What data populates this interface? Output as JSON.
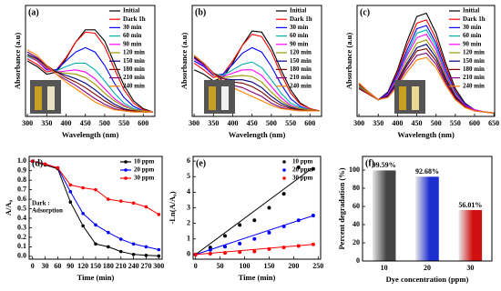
{
  "chart_data": [
    {
      "type": "line",
      "title": "(a)",
      "x_label": "Wavelength (nm)",
      "y_label": "Absorbance (a.u)",
      "x": [
        300,
        325,
        350,
        375,
        400,
        425,
        450,
        475,
        500,
        525,
        550,
        575,
        600,
        625
      ],
      "xlim": [
        295,
        630
      ],
      "xticks": [
        300,
        350,
        400,
        450,
        500,
        550,
        600
      ],
      "ylim": [
        0,
        1
      ],
      "legend": "upper right",
      "series": [
        {
          "name": "Initial",
          "color": "#000000",
          "values": [
            0.5,
            0.45,
            0.38,
            0.4,
            0.52,
            0.67,
            0.78,
            0.78,
            0.68,
            0.48,
            0.28,
            0.14,
            0.07,
            0.04
          ]
        },
        {
          "name": "Dark 1h",
          "color": "#ff0000",
          "values": [
            0.52,
            0.47,
            0.4,
            0.42,
            0.53,
            0.67,
            0.76,
            0.75,
            0.63,
            0.43,
            0.24,
            0.12,
            0.06,
            0.04
          ]
        },
        {
          "name": "30 min",
          "color": "#0000ff",
          "values": [
            0.55,
            0.5,
            0.42,
            0.42,
            0.5,
            0.58,
            0.62,
            0.58,
            0.46,
            0.3,
            0.17,
            0.09,
            0.05,
            0.04
          ]
        },
        {
          "name": "60 min",
          "color": "#00b0b0",
          "values": [
            0.54,
            0.5,
            0.43,
            0.41,
            0.45,
            0.48,
            0.48,
            0.42,
            0.32,
            0.21,
            0.12,
            0.07,
            0.05,
            0.04
          ]
        },
        {
          "name": "90 min",
          "color": "#ff00ff",
          "values": [
            0.55,
            0.5,
            0.43,
            0.4,
            0.41,
            0.42,
            0.4,
            0.34,
            0.25,
            0.16,
            0.1,
            0.06,
            0.05,
            0.04
          ]
        },
        {
          "name": "120 min",
          "color": "#999900",
          "values": [
            0.55,
            0.51,
            0.44,
            0.4,
            0.39,
            0.38,
            0.35,
            0.29,
            0.21,
            0.14,
            0.09,
            0.06,
            0.05,
            0.04
          ]
        },
        {
          "name": "150 min",
          "color": "#000080",
          "values": [
            0.56,
            0.52,
            0.45,
            0.4,
            0.37,
            0.34,
            0.3,
            0.24,
            0.17,
            0.11,
            0.07,
            0.05,
            0.04,
            0.04
          ]
        },
        {
          "name": "180 min",
          "color": "#800000",
          "values": [
            0.58,
            0.53,
            0.46,
            0.4,
            0.35,
            0.31,
            0.26,
            0.2,
            0.14,
            0.09,
            0.06,
            0.05,
            0.04,
            0.04
          ]
        },
        {
          "name": "210 min",
          "color": "#800080",
          "values": [
            0.58,
            0.53,
            0.45,
            0.38,
            0.33,
            0.28,
            0.22,
            0.16,
            0.11,
            0.07,
            0.05,
            0.04,
            0.04,
            0.04
          ]
        },
        {
          "name": "240 min",
          "color": "#ff8000",
          "values": [
            0.6,
            0.55,
            0.46,
            0.38,
            0.31,
            0.25,
            0.19,
            0.13,
            0.09,
            0.06,
            0.05,
            0.04,
            0.04,
            0.04
          ]
        }
      ]
    },
    {
      "type": "line",
      "title": "(b)",
      "x_label": "Wavelength (nm)",
      "y_label": "Absorbance (a.u)",
      "x": [
        300,
        325,
        350,
        375,
        400,
        425,
        450,
        475,
        500,
        525,
        550,
        575,
        600,
        625
      ],
      "xlim": [
        295,
        630
      ],
      "xticks": [
        300,
        350,
        400,
        450,
        500,
        550,
        600
      ],
      "ylim": [
        0,
        1
      ],
      "legend": "upper right",
      "series": [
        {
          "name": "Initial",
          "color": "#000000",
          "values": [
            0.42,
            0.38,
            0.32,
            0.35,
            0.48,
            0.64,
            0.77,
            0.76,
            0.62,
            0.42,
            0.24,
            0.12,
            0.07,
            0.05
          ]
        },
        {
          "name": "Dark 1h",
          "color": "#ff0000",
          "values": [
            0.48,
            0.42,
            0.35,
            0.38,
            0.5,
            0.64,
            0.74,
            0.72,
            0.58,
            0.38,
            0.21,
            0.11,
            0.07,
            0.05
          ]
        },
        {
          "name": "30 min",
          "color": "#0000ff",
          "values": [
            0.5,
            0.45,
            0.37,
            0.38,
            0.47,
            0.57,
            0.62,
            0.58,
            0.45,
            0.29,
            0.16,
            0.09,
            0.06,
            0.05
          ]
        },
        {
          "name": "60 min",
          "color": "#00b0b0",
          "values": [
            0.52,
            0.46,
            0.38,
            0.37,
            0.42,
            0.47,
            0.49,
            0.44,
            0.33,
            0.21,
            0.12,
            0.08,
            0.06,
            0.05
          ]
        },
        {
          "name": "90 min",
          "color": "#ff00ff",
          "values": [
            0.52,
            0.46,
            0.38,
            0.36,
            0.39,
            0.42,
            0.42,
            0.37,
            0.27,
            0.17,
            0.1,
            0.07,
            0.06,
            0.05
          ]
        },
        {
          "name": "120 min",
          "color": "#999900",
          "values": [
            0.53,
            0.47,
            0.39,
            0.35,
            0.36,
            0.37,
            0.36,
            0.31,
            0.22,
            0.14,
            0.09,
            0.07,
            0.06,
            0.05
          ]
        },
        {
          "name": "150 min",
          "color": "#000080",
          "values": [
            0.53,
            0.47,
            0.39,
            0.34,
            0.33,
            0.33,
            0.31,
            0.26,
            0.18,
            0.12,
            0.08,
            0.06,
            0.05,
            0.05
          ]
        },
        {
          "name": "180 min",
          "color": "#800000",
          "values": [
            0.54,
            0.48,
            0.39,
            0.34,
            0.31,
            0.3,
            0.27,
            0.22,
            0.15,
            0.1,
            0.07,
            0.06,
            0.05,
            0.05
          ]
        },
        {
          "name": "210 min",
          "color": "#800080",
          "values": [
            0.55,
            0.48,
            0.39,
            0.32,
            0.28,
            0.26,
            0.22,
            0.18,
            0.12,
            0.08,
            0.06,
            0.05,
            0.05,
            0.05
          ]
        },
        {
          "name": "240 min",
          "color": "#ff8000",
          "values": [
            0.55,
            0.48,
            0.38,
            0.31,
            0.26,
            0.22,
            0.18,
            0.14,
            0.1,
            0.07,
            0.06,
            0.05,
            0.05,
            0.05
          ]
        }
      ]
    },
    {
      "type": "line",
      "title": "(c)",
      "x_label": "Wavelength (nm)",
      "y_label": "Absorbance (a.u)",
      "x": [
        300,
        325,
        350,
        375,
        400,
        425,
        450,
        475,
        500,
        525,
        550,
        575,
        600,
        625,
        650
      ],
      "xlim": [
        295,
        652
      ],
      "xticks": [
        300,
        350,
        400,
        450,
        500,
        550,
        600,
        650
      ],
      "ylim": [
        0,
        1
      ],
      "legend": "upper right",
      "series": [
        {
          "name": "Initial",
          "color": "#000000",
          "values": [
            0.25,
            0.2,
            0.15,
            0.22,
            0.42,
            0.68,
            0.9,
            0.93,
            0.75,
            0.48,
            0.25,
            0.12,
            0.06,
            0.04,
            0.03
          ]
        },
        {
          "name": "Dark 1h",
          "color": "#ff0000",
          "values": [
            0.26,
            0.2,
            0.15,
            0.21,
            0.4,
            0.64,
            0.84,
            0.87,
            0.7,
            0.45,
            0.23,
            0.11,
            0.06,
            0.04,
            0.03
          ]
        },
        {
          "name": "30 min",
          "color": "#0000ff",
          "values": [
            0.27,
            0.21,
            0.15,
            0.21,
            0.38,
            0.6,
            0.79,
            0.82,
            0.66,
            0.42,
            0.22,
            0.11,
            0.06,
            0.04,
            0.03
          ]
        },
        {
          "name": "60 min",
          "color": "#00b0b0",
          "values": [
            0.27,
            0.21,
            0.15,
            0.2,
            0.36,
            0.57,
            0.75,
            0.78,
            0.63,
            0.4,
            0.21,
            0.1,
            0.06,
            0.04,
            0.03
          ]
        },
        {
          "name": "90 min",
          "color": "#ff00ff",
          "values": [
            0.28,
            0.21,
            0.15,
            0.2,
            0.35,
            0.55,
            0.71,
            0.74,
            0.6,
            0.38,
            0.2,
            0.1,
            0.06,
            0.04,
            0.03
          ]
        },
        {
          "name": "120 min",
          "color": "#999900",
          "values": [
            0.28,
            0.21,
            0.15,
            0.19,
            0.33,
            0.51,
            0.66,
            0.69,
            0.56,
            0.36,
            0.19,
            0.09,
            0.05,
            0.04,
            0.03
          ]
        },
        {
          "name": "150 min",
          "color": "#000080",
          "values": [
            0.29,
            0.22,
            0.15,
            0.19,
            0.32,
            0.48,
            0.62,
            0.65,
            0.53,
            0.34,
            0.18,
            0.09,
            0.05,
            0.04,
            0.03
          ]
        },
        {
          "name": "180 min",
          "color": "#800000",
          "values": [
            0.29,
            0.22,
            0.15,
            0.18,
            0.3,
            0.46,
            0.59,
            0.61,
            0.5,
            0.32,
            0.17,
            0.09,
            0.05,
            0.04,
            0.03
          ]
        },
        {
          "name": "210 min",
          "color": "#800080",
          "values": [
            0.3,
            0.22,
            0.15,
            0.18,
            0.29,
            0.43,
            0.55,
            0.57,
            0.47,
            0.3,
            0.16,
            0.08,
            0.05,
            0.04,
            0.03
          ]
        },
        {
          "name": "240 min",
          "color": "#ff8000",
          "values": [
            0.3,
            0.22,
            0.15,
            0.17,
            0.27,
            0.4,
            0.51,
            0.53,
            0.44,
            0.28,
            0.15,
            0.08,
            0.05,
            0.04,
            0.03
          ]
        }
      ]
    },
    {
      "type": "line",
      "markers": true,
      "title": "(d)",
      "x_label": "Time (min)",
      "y_label": "A/A₀",
      "annotation": [
        "Dark :",
        "Adsorption"
      ],
      "x": [
        0,
        30,
        60,
        90,
        120,
        150,
        180,
        210,
        240,
        270,
        300
      ],
      "xlim": [
        -8,
        308
      ],
      "xticks": [
        0,
        30,
        60,
        90,
        120,
        150,
        180,
        210,
        240,
        270,
        300
      ],
      "ylim": [
        -0.03,
        1.05
      ],
      "yticks": [
        {
          "value": 0,
          "label": "0.0"
        },
        0.1,
        0.2,
        0.3,
        0.4,
        0.5,
        0.6,
        0.7,
        0.8,
        0.9,
        {
          "value": 1,
          "label": "1.0"
        }
      ],
      "legend": "upper right",
      "series": [
        {
          "name": "10 ppm",
          "color": "#000000",
          "values": [
            1.0,
            0.96,
            0.92,
            0.57,
            0.32,
            0.13,
            0.1,
            0.05,
            0.02,
            0.01,
            0.004
          ]
        },
        {
          "name": "20 ppm",
          "color": "#0000ff",
          "values": [
            1.0,
            0.97,
            0.93,
            0.68,
            0.45,
            0.33,
            0.25,
            0.18,
            0.13,
            0.1,
            0.07
          ]
        },
        {
          "name": "30 ppm",
          "color": "#ff0000",
          "values": [
            1.0,
            0.97,
            0.93,
            0.75,
            0.72,
            0.7,
            0.6,
            0.58,
            0.56,
            0.52,
            0.44
          ]
        }
      ]
    },
    {
      "type": "scatter",
      "title": "(e)",
      "x_label": "Time (min)",
      "y_label": "-Ln(A/A₀)",
      "x": [
        0,
        30,
        60,
        90,
        120,
        150,
        180,
        210,
        240
      ],
      "xlim": [
        -5,
        255
      ],
      "xticks": [
        0,
        50,
        100,
        150,
        200,
        250
      ],
      "ylim": [
        -0.3,
        6.3
      ],
      "yticks": [
        0,
        1,
        2,
        3,
        4,
        5,
        6
      ],
      "legend": "upper right",
      "series": [
        {
          "name": "10 ppm",
          "color": "#000000",
          "values": [
            0,
            0.45,
            1.2,
            1.9,
            2.2,
            3.0,
            3.9,
            5.6,
            5.5
          ],
          "fit": {
            "x": [
              0,
              240
            ],
            "values": [
              0,
              5.6
            ]
          }
        },
        {
          "name": "20 ppm",
          "color": "#0000ff",
          "values": [
            0,
            0.3,
            0.5,
            0.7,
            1.0,
            1.4,
            1.8,
            2.2,
            2.5
          ],
          "fit": {
            "x": [
              0,
              240
            ],
            "values": [
              0,
              2.5
            ]
          }
        },
        {
          "name": "30 ppm",
          "color": "#ff0000",
          "values": [
            0,
            0.05,
            0.1,
            0.15,
            0.2,
            0.35,
            0.45,
            0.55,
            0.65
          ],
          "fit": {
            "x": [
              0,
              240
            ],
            "values": [
              0,
              0.65
            ]
          }
        }
      ]
    },
    {
      "type": "bar",
      "title": "(f)",
      "x_label": "Dye concentration (ppm)",
      "y_label": "Percent degradation (%)",
      "categories": [
        "10",
        "20",
        "30"
      ],
      "values": [
        99.59,
        92.68,
        56.01
      ],
      "value_labels": [
        "99.59%",
        "92.68%",
        "56.01%"
      ],
      "colors": [
        "#444444",
        "#1e2fd0",
        "#d01010"
      ],
      "ylim": [
        0,
        115
      ],
      "yticks": [
        0,
        20,
        40,
        60,
        80,
        100
      ]
    }
  ]
}
